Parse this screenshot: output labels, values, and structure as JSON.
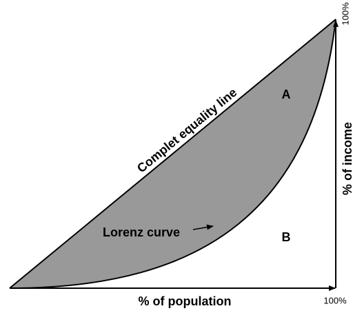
{
  "equality_line": "Complet equality line",
  "region_a": "A",
  "region_b": "B",
  "lorenz_curve": "Lorenz curve",
  "x_axis_label": "% of population",
  "y_axis_label": "% of income",
  "x_end_label": "100%",
  "y_end_label": "100%"
}
